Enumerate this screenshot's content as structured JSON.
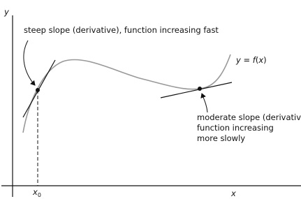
{
  "axes": {
    "y_label": "y",
    "x_label": "x",
    "x0": {
      "base": "x",
      "sub": "0"
    }
  },
  "curve_label": {
    "y": "y",
    "eq": " = ",
    "f": "f",
    "open": "(",
    "x": "x",
    "close": ")"
  },
  "annotations": {
    "steep": "steep slope (derivative), function increasing fast",
    "moderate": [
      "moderate slope (derivative),",
      "function increasing",
      "more slowly"
    ]
  }
}
